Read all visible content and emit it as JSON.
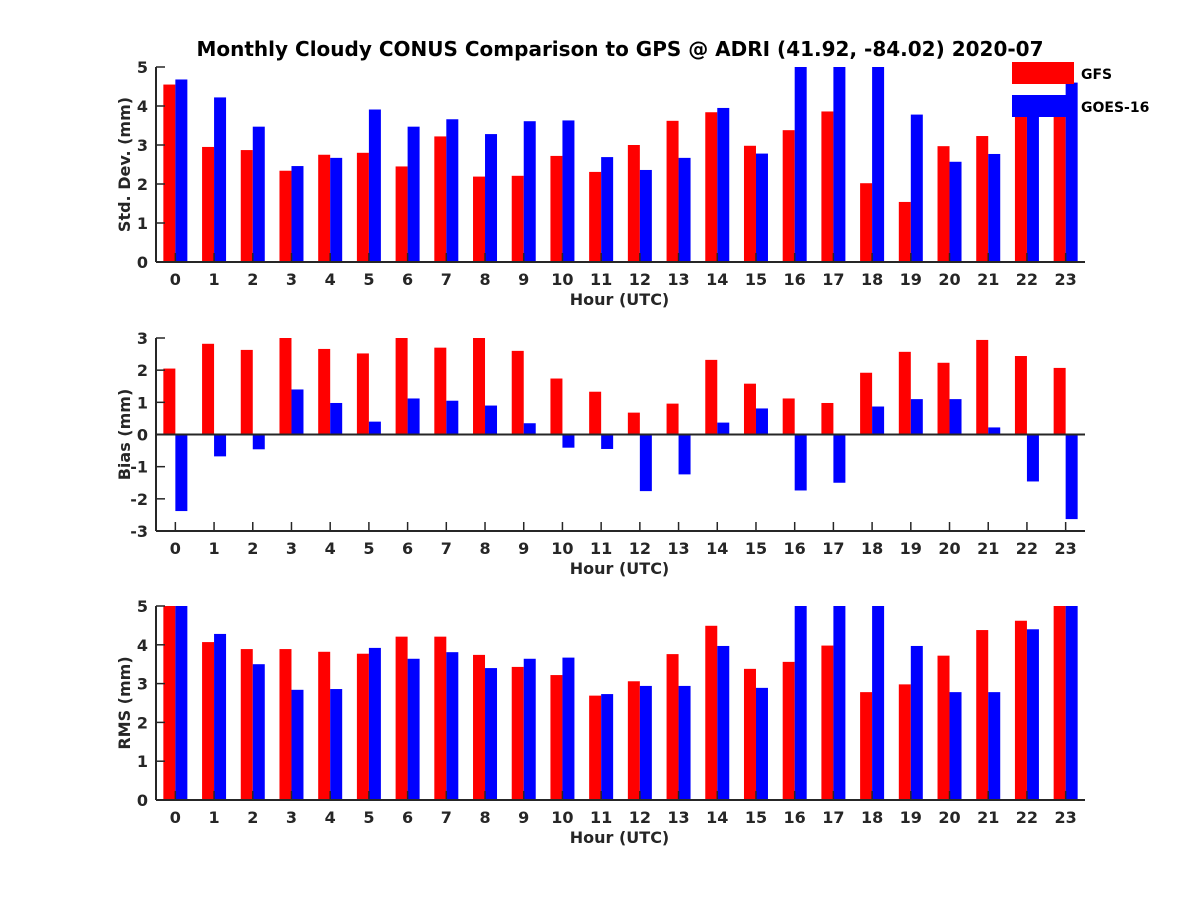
{
  "figure": {
    "title": "Monthly Cloudy CONUS Comparison to GPS @ ADRI (41.92, -84.02) 2020-07"
  },
  "colors": {
    "GFS": "#ff0000",
    "GOES-16": "#0000ff",
    "axis": "#262626"
  },
  "legend": {
    "placement": "top-right",
    "entries": [
      "GFS",
      "GOES-16"
    ]
  },
  "chart_data": [
    {
      "type": "bar",
      "xlabel": "Hour (UTC)",
      "ylabel": "Std. Dev. (mm)",
      "ylim": [
        0,
        5
      ],
      "yticks": [
        0,
        1,
        2,
        3,
        4,
        5
      ],
      "categories": [
        "0",
        "1",
        "2",
        "3",
        "4",
        "5",
        "6",
        "7",
        "8",
        "9",
        "10",
        "11",
        "12",
        "13",
        "14",
        "15",
        "16",
        "17",
        "18",
        "19",
        "20",
        "21",
        "22",
        "23"
      ],
      "series": [
        {
          "name": "GFS",
          "values": [
            4.55,
            2.95,
            2.87,
            2.34,
            2.75,
            2.8,
            2.45,
            3.22,
            2.19,
            2.21,
            2.72,
            2.31,
            3.0,
            3.62,
            3.84,
            2.98,
            3.38,
            3.86,
            2.02,
            1.54,
            2.97,
            3.23,
            3.95,
            4.0
          ]
        },
        {
          "name": "GOES-16",
          "values": [
            4.68,
            4.22,
            3.47,
            2.46,
            2.67,
            3.91,
            3.47,
            3.66,
            3.28,
            3.61,
            3.63,
            2.69,
            2.36,
            2.67,
            3.95,
            2.78,
            5.0,
            5.0,
            5.0,
            3.78,
            2.57,
            2.77,
            4.17,
            4.6
          ]
        }
      ]
    },
    {
      "type": "bar",
      "xlabel": "Hour (UTC)",
      "ylabel": "Bias (mm)",
      "ylim": [
        -3,
        3
      ],
      "yticks": [
        -3,
        -2,
        -1,
        0,
        1,
        2,
        3
      ],
      "categories": [
        "0",
        "1",
        "2",
        "3",
        "4",
        "5",
        "6",
        "7",
        "8",
        "9",
        "10",
        "11",
        "12",
        "13",
        "14",
        "15",
        "16",
        "17",
        "18",
        "19",
        "20",
        "21",
        "22",
        "23"
      ],
      "series": [
        {
          "name": "GFS",
          "values": [
            2.05,
            2.82,
            2.63,
            3.0,
            2.66,
            2.52,
            3.0,
            2.7,
            3.0,
            2.6,
            1.74,
            1.33,
            0.68,
            0.96,
            2.32,
            1.58,
            1.12,
            0.98,
            1.92,
            2.57,
            2.23,
            2.94,
            2.44,
            2.07
          ]
        },
        {
          "name": "GOES-16",
          "values": [
            -2.38,
            -0.68,
            -0.46,
            1.4,
            0.98,
            0.4,
            1.12,
            1.05,
            0.9,
            0.35,
            -0.41,
            -0.45,
            -1.76,
            -1.24,
            0.37,
            0.81,
            -1.74,
            -1.5,
            0.87,
            1.1,
            1.1,
            0.22,
            -1.46,
            -2.63
          ]
        }
      ]
    },
    {
      "type": "bar",
      "xlabel": "Hour (UTC)",
      "ylabel": "RMS (mm)",
      "ylim": [
        0,
        5
      ],
      "yticks": [
        0,
        1,
        2,
        3,
        4,
        5
      ],
      "categories": [
        "0",
        "1",
        "2",
        "3",
        "4",
        "5",
        "6",
        "7",
        "8",
        "9",
        "10",
        "11",
        "12",
        "13",
        "14",
        "15",
        "16",
        "17",
        "18",
        "19",
        "20",
        "21",
        "22",
        "23"
      ],
      "series": [
        {
          "name": "GFS",
          "values": [
            5.0,
            4.07,
            3.89,
            3.89,
            3.82,
            3.77,
            4.21,
            4.21,
            3.74,
            3.43,
            3.22,
            2.69,
            3.06,
            3.76,
            4.49,
            3.38,
            3.56,
            3.98,
            2.78,
            2.98,
            3.72,
            4.38,
            4.62,
            5.0
          ]
        },
        {
          "name": "GOES-16",
          "values": [
            5.0,
            4.28,
            3.5,
            2.84,
            2.86,
            3.92,
            3.64,
            3.81,
            3.4,
            3.64,
            3.67,
            2.73,
            2.94,
            2.94,
            3.97,
            2.89,
            5.0,
            5.0,
            5.0,
            3.97,
            2.78,
            2.78,
            4.4,
            5.0
          ]
        }
      ]
    }
  ]
}
